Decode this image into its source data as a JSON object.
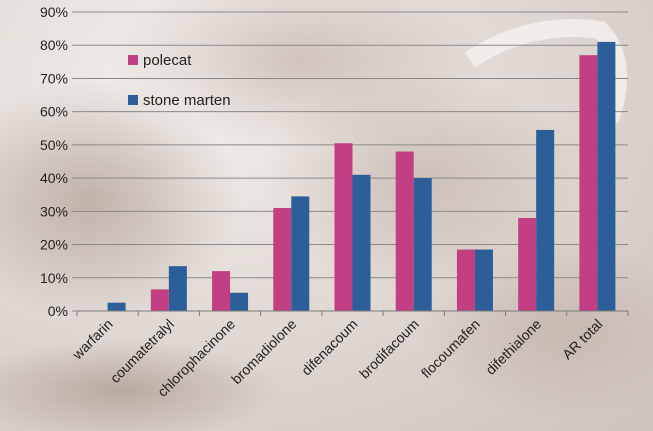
{
  "chart_data": {
    "type": "bar",
    "title": "",
    "xlabel": "",
    "ylabel": "",
    "ylim": [
      0,
      90
    ],
    "y_unit": "%",
    "y_ticks": [
      0,
      10,
      20,
      30,
      40,
      50,
      60,
      70,
      80,
      90
    ],
    "grid": true,
    "legend_position": "top-left",
    "categories": [
      "warfarin",
      "coumatetralyl",
      "chlorophacinone",
      "bromadiolone",
      "difenacoum",
      "brodifacoum",
      "flocoumafen",
      "difethialone",
      "AR total"
    ],
    "series": [
      {
        "name": "polecat",
        "color": "#c23f83",
        "values": [
          0,
          6.5,
          12,
          31,
          50.5,
          48,
          18.5,
          28,
          77
        ]
      },
      {
        "name": "stone marten",
        "color": "#2c5e9a",
        "values": [
          2.5,
          13.5,
          5.5,
          34.5,
          41,
          40,
          18.5,
          54.5,
          81
        ]
      }
    ]
  }
}
